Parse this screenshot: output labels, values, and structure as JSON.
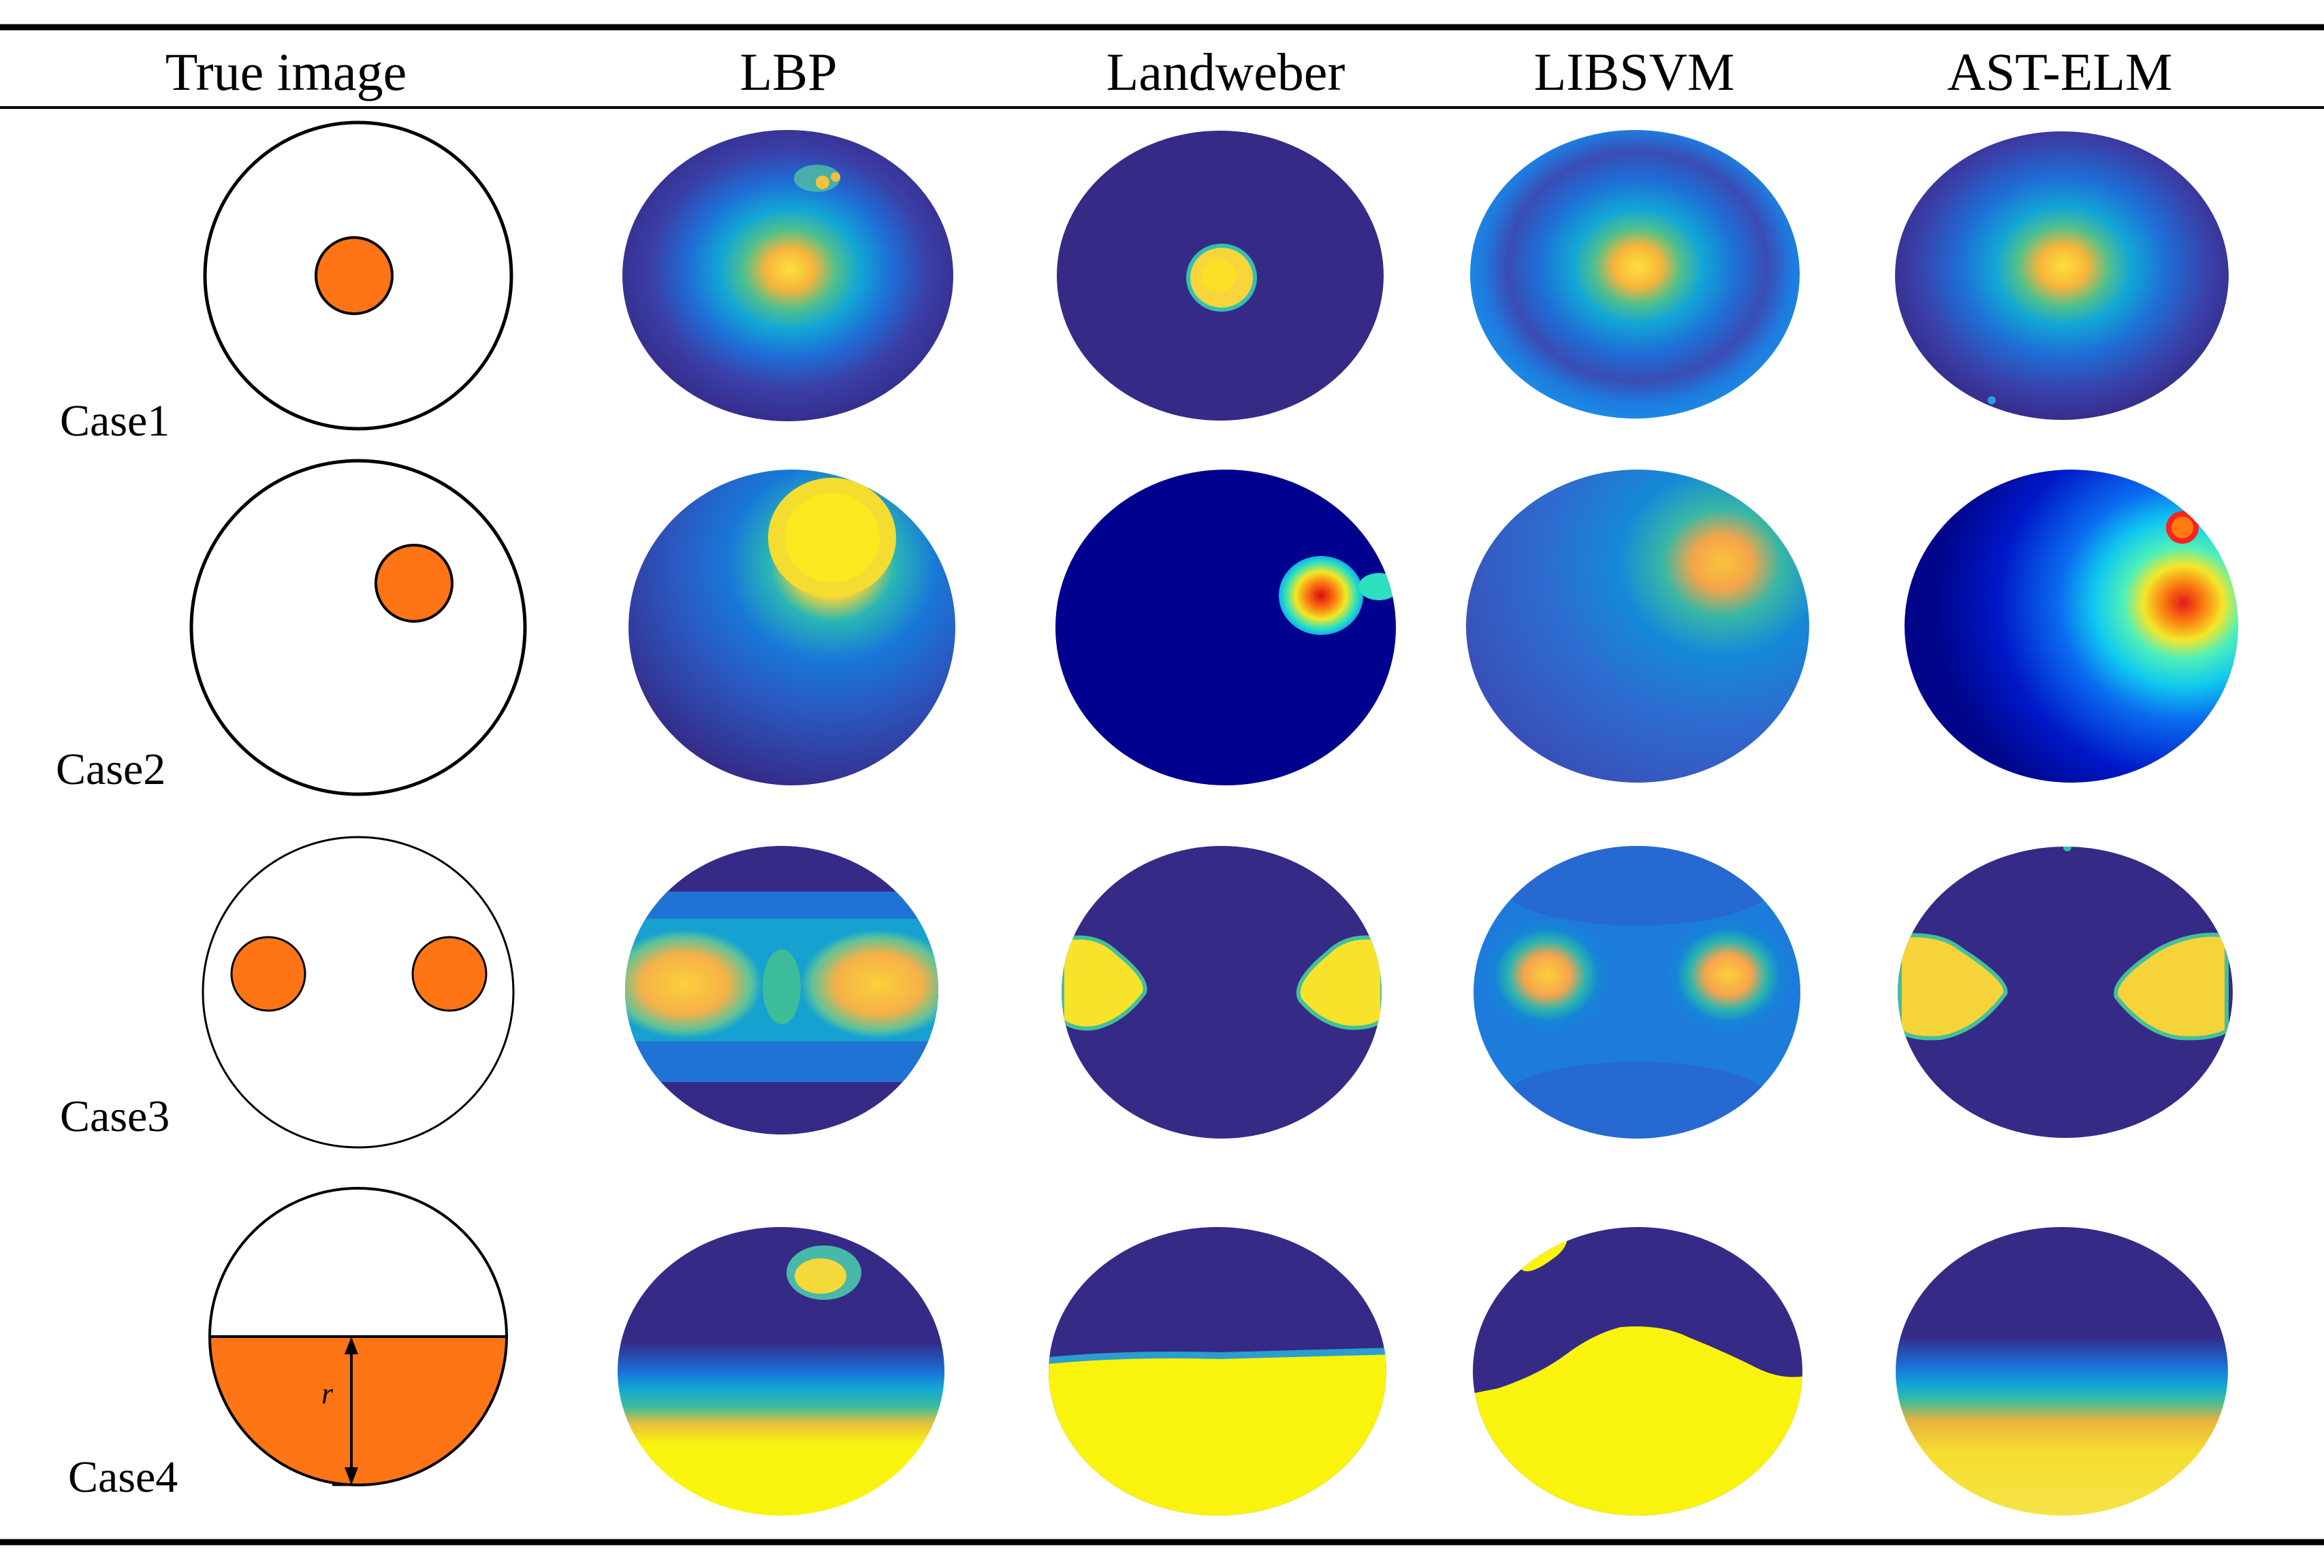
{
  "table": {
    "headers": [
      "True image",
      "LBP",
      "Landweber",
      "LIBSVM",
      "AST-ELM"
    ],
    "rows": [
      {
        "case": "Case1"
      },
      {
        "case": "Case2"
      },
      {
        "case": "Case3"
      },
      {
        "case": "Case4",
        "annotation": "r"
      }
    ]
  },
  "colors": {
    "inclusion": "#ff7516",
    "background_dark": "#352a86",
    "landweber_case2_bg": "#00008f",
    "hot_yellow": "#f9fb0e",
    "hot_orange": "#fbb030"
  }
}
